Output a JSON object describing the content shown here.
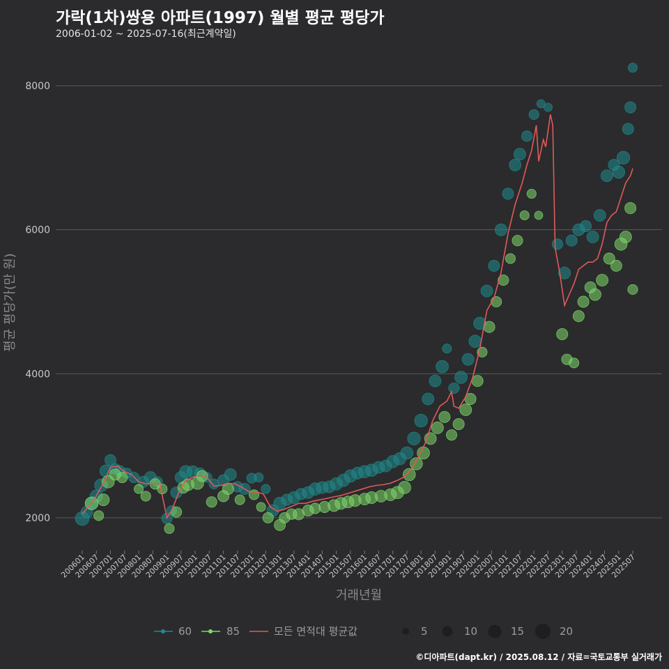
{
  "header": {
    "title": "가락(1차)쌍용 아파트(1997) 월별 평균 평당가",
    "subtitle": "2006-01-02 ~ 2025-07-16(최근계약일)"
  },
  "caption": "©디아파트(dapt.kr) / 2025.08.12 / 자료=국토교통부 실거래가",
  "colors": {
    "background": "#2b2b2d",
    "grid": "#5a5a5a",
    "series_60": "#1f8a8c",
    "series_85": "#7dd96a",
    "average_line": "#e05a5a"
  },
  "legend": {
    "series_60_label": "60",
    "series_85_label": "85",
    "avg_label": "모든 면적대 평균값",
    "size_labels": [
      "5",
      "10",
      "15",
      "20"
    ]
  },
  "chart_data": {
    "type": "scatter",
    "xlabel": "거래년월",
    "ylabel": "평균 평당가(만 원)",
    "ylim": [
      1500,
      8400
    ],
    "yticks": [
      2000,
      4000,
      6000,
      8000
    ],
    "x_tick_labels": [
      "200601",
      "200607",
      "200701",
      "200707",
      "200801",
      "200807",
      "200901",
      "200907",
      "201001",
      "201007",
      "201101",
      "201107",
      "201201",
      "201207",
      "201301",
      "201307",
      "201401",
      "201407",
      "201501",
      "201507",
      "201601",
      "201607",
      "201701",
      "201707",
      "201801",
      "201807",
      "201901",
      "201907",
      "202001",
      "202007",
      "202101",
      "202107",
      "202201",
      "202207",
      "202301",
      "202307",
      "202401",
      "202407",
      "202501",
      "202507"
    ],
    "x_range_months": [
      "2006-01",
      "2025-07"
    ],
    "size_legend": [
      5,
      10,
      15,
      20
    ],
    "series": [
      {
        "name": "60",
        "color": "#1f8a8c",
        "points": [
          [
            "2006-01",
            1990,
            12
          ],
          [
            "2006-03",
            2080,
            8
          ],
          [
            "2006-05",
            2200,
            10
          ],
          [
            "2006-07",
            2300,
            9
          ],
          [
            "2006-09",
            2450,
            10
          ],
          [
            "2006-11",
            2650,
            8
          ],
          [
            "2007-01",
            2800,
            7
          ],
          [
            "2007-03",
            2680,
            6
          ],
          [
            "2007-05",
            2650,
            6
          ],
          [
            "2007-08",
            2620,
            5
          ],
          [
            "2007-11",
            2560,
            6
          ],
          [
            "2008-03",
            2500,
            7
          ],
          [
            "2008-06",
            2560,
            8
          ],
          [
            "2008-09",
            2500,
            5
          ],
          [
            "2009-01",
            1990,
            6
          ],
          [
            "2009-03",
            2100,
            5
          ],
          [
            "2009-05",
            2350,
            7
          ],
          [
            "2009-07",
            2560,
            8
          ],
          [
            "2009-09",
            2640,
            9
          ],
          [
            "2009-12",
            2640,
            8
          ],
          [
            "2010-03",
            2620,
            6
          ],
          [
            "2010-06",
            2560,
            5
          ],
          [
            "2010-09",
            2470,
            5
          ],
          [
            "2011-01",
            2520,
            7
          ],
          [
            "2011-04",
            2600,
            8
          ],
          [
            "2011-07",
            2430,
            6
          ],
          [
            "2011-10",
            2400,
            7
          ],
          [
            "2012-01",
            2550,
            5
          ],
          [
            "2012-04",
            2560,
            4
          ],
          [
            "2012-07",
            2400,
            4
          ],
          [
            "2012-10",
            2100,
            8
          ],
          [
            "2013-01",
            2200,
            9
          ],
          [
            "2013-04",
            2250,
            7
          ],
          [
            "2013-07",
            2280,
            8
          ],
          [
            "2013-10",
            2330,
            7
          ],
          [
            "2014-01",
            2350,
            8
          ],
          [
            "2014-04",
            2400,
            9
          ],
          [
            "2014-07",
            2420,
            8
          ],
          [
            "2014-10",
            2430,
            8
          ],
          [
            "2015-01",
            2470,
            9
          ],
          [
            "2015-04",
            2520,
            9
          ],
          [
            "2015-07",
            2580,
            9
          ],
          [
            "2015-10",
            2620,
            8
          ],
          [
            "2016-01",
            2640,
            9
          ],
          [
            "2016-04",
            2660,
            9
          ],
          [
            "2016-07",
            2700,
            8
          ],
          [
            "2016-10",
            2720,
            8
          ],
          [
            "2017-01",
            2780,
            9
          ],
          [
            "2017-04",
            2820,
            9
          ],
          [
            "2017-07",
            2900,
            9
          ],
          [
            "2017-10",
            3100,
            10
          ],
          [
            "2018-01",
            3350,
            10
          ],
          [
            "2018-04",
            3650,
            8
          ],
          [
            "2018-07",
            3900,
            8
          ],
          [
            "2018-10",
            4100,
            9
          ],
          [
            "2018-12",
            4350,
            4
          ],
          [
            "2019-03",
            3800,
            6
          ],
          [
            "2019-06",
            3950,
            9
          ],
          [
            "2019-09",
            4200,
            8
          ],
          [
            "2019-12",
            4450,
            9
          ],
          [
            "2020-02",
            4700,
            9
          ],
          [
            "2020-05",
            5150,
            8
          ],
          [
            "2020-08",
            5500,
            7
          ],
          [
            "2020-11",
            6000,
            8
          ],
          [
            "2021-02",
            6500,
            7
          ],
          [
            "2021-05",
            6900,
            8
          ],
          [
            "2021-07",
            7050,
            8
          ],
          [
            "2021-10",
            7300,
            6
          ],
          [
            "2022-01",
            7600,
            5
          ],
          [
            "2022-04",
            7750,
            3
          ],
          [
            "2022-07",
            7700,
            3
          ],
          [
            "2022-11",
            5800,
            6
          ],
          [
            "2023-02",
            5400,
            8
          ],
          [
            "2023-05",
            5850,
            7
          ],
          [
            "2023-08",
            6000,
            8
          ],
          [
            "2023-11",
            6050,
            7
          ],
          [
            "2024-02",
            5900,
            8
          ],
          [
            "2024-05",
            6200,
            8
          ],
          [
            "2024-08",
            6750,
            8
          ],
          [
            "2024-11",
            6900,
            7
          ],
          [
            "2025-01",
            6800,
            9
          ],
          [
            "2025-03",
            7000,
            10
          ],
          [
            "2025-05",
            7400,
            7
          ],
          [
            "2025-06",
            7700,
            7
          ],
          [
            "2025-07",
            8250,
            4
          ]
        ]
      },
      {
        "name": "85",
        "color": "#7dd96a",
        "points": [
          [
            "2006-05",
            2200,
            10
          ],
          [
            "2006-08",
            2030,
            5
          ],
          [
            "2006-10",
            2250,
            8
          ],
          [
            "2006-12",
            2500,
            9
          ],
          [
            "2007-03",
            2600,
            7
          ],
          [
            "2007-06",
            2560,
            6
          ],
          [
            "2008-01",
            2400,
            4
          ],
          [
            "2008-04",
            2300,
            5
          ],
          [
            "2008-08",
            2470,
            6
          ],
          [
            "2008-11",
            2400,
            5
          ],
          [
            "2009-02",
            1850,
            5
          ],
          [
            "2009-05",
            2080,
            6
          ],
          [
            "2009-08",
            2420,
            7
          ],
          [
            "2009-10",
            2460,
            8
          ],
          [
            "2010-02",
            2480,
            9
          ],
          [
            "2010-04",
            2580,
            7
          ],
          [
            "2010-08",
            2220,
            6
          ],
          [
            "2011-01",
            2300,
            7
          ],
          [
            "2011-03",
            2400,
            7
          ],
          [
            "2011-08",
            2250,
            5
          ],
          [
            "2012-02",
            2320,
            5
          ],
          [
            "2012-05",
            2150,
            4
          ],
          [
            "2012-08",
            2000,
            6
          ],
          [
            "2013-01",
            1900,
            7
          ],
          [
            "2013-03",
            2000,
            6
          ],
          [
            "2013-06",
            2050,
            6
          ],
          [
            "2013-09",
            2050,
            7
          ],
          [
            "2014-01",
            2100,
            7
          ],
          [
            "2014-04",
            2130,
            6
          ],
          [
            "2014-08",
            2150,
            7
          ],
          [
            "2014-12",
            2170,
            8
          ],
          [
            "2015-03",
            2200,
            8
          ],
          [
            "2015-06",
            2220,
            8
          ],
          [
            "2015-09",
            2240,
            8
          ],
          [
            "2016-01",
            2260,
            8
          ],
          [
            "2016-04",
            2280,
            8
          ],
          [
            "2016-08",
            2300,
            8
          ],
          [
            "2016-12",
            2320,
            8
          ],
          [
            "2017-03",
            2350,
            9
          ],
          [
            "2017-06",
            2420,
            9
          ],
          [
            "2017-08",
            2600,
            9
          ],
          [
            "2017-11",
            2750,
            9
          ],
          [
            "2018-02",
            2900,
            9
          ],
          [
            "2018-05",
            3100,
            8
          ],
          [
            "2018-08",
            3250,
            8
          ],
          [
            "2018-11",
            3400,
            7
          ],
          [
            "2019-02",
            3150,
            6
          ],
          [
            "2019-05",
            3300,
            7
          ],
          [
            "2019-08",
            3500,
            8
          ],
          [
            "2019-10",
            3650,
            7
          ],
          [
            "2020-01",
            3900,
            7
          ],
          [
            "2020-03",
            4300,
            5
          ],
          [
            "2020-06",
            4650,
            7
          ],
          [
            "2020-09",
            5000,
            6
          ],
          [
            "2020-12",
            5300,
            6
          ],
          [
            "2021-03",
            5600,
            5
          ],
          [
            "2021-06",
            5850,
            6
          ],
          [
            "2021-09",
            6200,
            4
          ],
          [
            "2021-12",
            6500,
            4
          ],
          [
            "2022-03",
            6200,
            3
          ],
          [
            "2023-01",
            4550,
            7
          ],
          [
            "2023-03",
            4200,
            6
          ],
          [
            "2023-06",
            4150,
            5
          ],
          [
            "2023-08",
            4800,
            7
          ],
          [
            "2023-10",
            5000,
            7
          ],
          [
            "2024-01",
            5200,
            7
          ],
          [
            "2024-03",
            5100,
            8
          ],
          [
            "2024-06",
            5300,
            8
          ],
          [
            "2024-09",
            5600,
            7
          ],
          [
            "2024-12",
            5500,
            7
          ],
          [
            "2025-02",
            5800,
            9
          ],
          [
            "2025-04",
            5900,
            8
          ],
          [
            "2025-06",
            6300,
            7
          ],
          [
            "2025-07",
            5170,
            5
          ]
        ]
      }
    ],
    "average_line": {
      "name": "모든 면적대 평균값",
      "color": "#e05a5a",
      "points": [
        [
          "2006-01",
          2050
        ],
        [
          "2006-06",
          2250
        ],
        [
          "2006-10",
          2480
        ],
        [
          "2007-01",
          2700
        ],
        [
          "2007-04",
          2720
        ],
        [
          "2007-07",
          2640
        ],
        [
          "2007-10",
          2600
        ],
        [
          "2008-01",
          2500
        ],
        [
          "2008-04",
          2470
        ],
        [
          "2008-07",
          2480
        ],
        [
          "2008-10",
          2470
        ],
        [
          "2009-01",
          2000
        ],
        [
          "2009-03",
          2100
        ],
        [
          "2009-06",
          2350
        ],
        [
          "2009-09",
          2520
        ],
        [
          "2009-12",
          2560
        ],
        [
          "2010-03",
          2590
        ],
        [
          "2010-06",
          2560
        ],
        [
          "2010-09",
          2440
        ],
        [
          "2010-12",
          2450
        ],
        [
          "2011-03",
          2480
        ],
        [
          "2011-06",
          2470
        ],
        [
          "2011-09",
          2420
        ],
        [
          "2011-12",
          2360
        ],
        [
          "2012-03",
          2360
        ],
        [
          "2012-06",
          2330
        ],
        [
          "2012-09",
          2150
        ],
        [
          "2012-12",
          2090
        ],
        [
          "2013-03",
          2120
        ],
        [
          "2013-06",
          2160
        ],
        [
          "2013-09",
          2200
        ],
        [
          "2013-12",
          2200
        ],
        [
          "2014-03",
          2230
        ],
        [
          "2014-06",
          2250
        ],
        [
          "2014-09",
          2270
        ],
        [
          "2014-12",
          2290
        ],
        [
          "2015-03",
          2310
        ],
        [
          "2015-06",
          2340
        ],
        [
          "2015-09",
          2370
        ],
        [
          "2015-12",
          2400
        ],
        [
          "2016-03",
          2430
        ],
        [
          "2016-06",
          2450
        ],
        [
          "2016-09",
          2460
        ],
        [
          "2016-12",
          2480
        ],
        [
          "2017-03",
          2520
        ],
        [
          "2017-06",
          2570
        ],
        [
          "2017-09",
          2680
        ],
        [
          "2017-12",
          2850
        ],
        [
          "2018-03",
          3050
        ],
        [
          "2018-06",
          3350
        ],
        [
          "2018-09",
          3550
        ],
        [
          "2018-12",
          3620
        ],
        [
          "2019-02",
          3750
        ],
        [
          "2019-03",
          3550
        ],
        [
          "2019-05",
          3520
        ],
        [
          "2019-08",
          3680
        ],
        [
          "2019-11",
          3950
        ],
        [
          "2020-02",
          4350
        ],
        [
          "2020-05",
          4880
        ],
        [
          "2020-08",
          5050
        ],
        [
          "2020-11",
          5400
        ],
        [
          "2021-02",
          5950
        ],
        [
          "2021-05",
          6350
        ],
        [
          "2021-08",
          6650
        ],
        [
          "2021-10",
          6900
        ],
        [
          "2021-12",
          7100
        ],
        [
          "2022-02",
          7450
        ],
        [
          "2022-03",
          6950
        ],
        [
          "2022-05",
          7250
        ],
        [
          "2022-06",
          7150
        ],
        [
          "2022-08",
          7600
        ],
        [
          "2022-09",
          7450
        ],
        [
          "2022-10",
          5750
        ],
        [
          "2022-12",
          5400
        ],
        [
          "2023-02",
          4950
        ],
        [
          "2023-04",
          5100
        ],
        [
          "2023-06",
          5250
        ],
        [
          "2023-08",
          5450
        ],
        [
          "2023-10",
          5500
        ],
        [
          "2023-12",
          5550
        ],
        [
          "2024-02",
          5550
        ],
        [
          "2024-04",
          5600
        ],
        [
          "2024-06",
          5800
        ],
        [
          "2024-08",
          6100
        ],
        [
          "2024-10",
          6200
        ],
        [
          "2024-12",
          6250
        ],
        [
          "2025-02",
          6450
        ],
        [
          "2025-04",
          6650
        ],
        [
          "2025-06",
          6750
        ],
        [
          "2025-07",
          6850
        ]
      ]
    }
  }
}
